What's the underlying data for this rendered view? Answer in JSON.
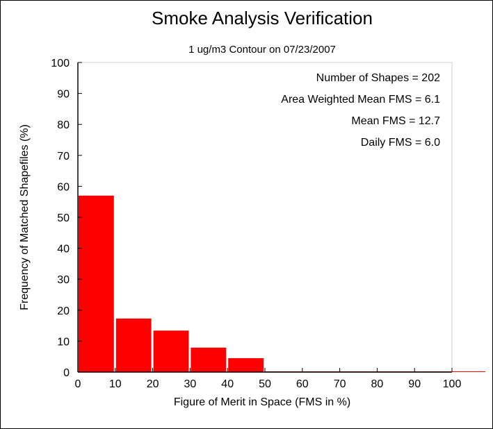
{
  "chart_data": {
    "type": "bar",
    "title": "Smoke Analysis Verification",
    "subtitle": "1 ug/m3 Contour on 07/23/2007",
    "xlabel": "Figure of Merit in Space (FMS in %)",
    "ylabel": "Frequency of Matched Shapefiles (%)",
    "xlim": [
      0,
      100
    ],
    "ylim": [
      0,
      100
    ],
    "x_ticks": [
      0,
      10,
      20,
      30,
      40,
      50,
      60,
      70,
      80,
      90,
      100
    ],
    "y_ticks": [
      0,
      10,
      20,
      30,
      40,
      50,
      60,
      70,
      80,
      90,
      100
    ],
    "categories": [
      "0-10",
      "10-20",
      "20-30",
      "30-40",
      "40-50",
      "50-60",
      "60-70",
      "70-80",
      "80-90",
      "90-100"
    ],
    "bins": [
      [
        0,
        10
      ],
      [
        10,
        20
      ],
      [
        20,
        30
      ],
      [
        30,
        40
      ],
      [
        40,
        50
      ],
      [
        50,
        60
      ],
      [
        60,
        70
      ],
      [
        70,
        80
      ],
      [
        80,
        90
      ],
      [
        90,
        100
      ]
    ],
    "values": [
      57,
      17.3,
      13.4,
      7.9,
      4.5,
      0,
      0,
      0,
      0,
      0
    ],
    "bar_color": "#ff0000",
    "annotations": [
      "Number of Shapes = 202",
      "Area Weighted Mean FMS = 6.1",
      "Mean FMS = 12.7",
      "Daily FMS = 6.0"
    ],
    "annotation_placement": "top-right",
    "grid": false,
    "legend": false
  }
}
